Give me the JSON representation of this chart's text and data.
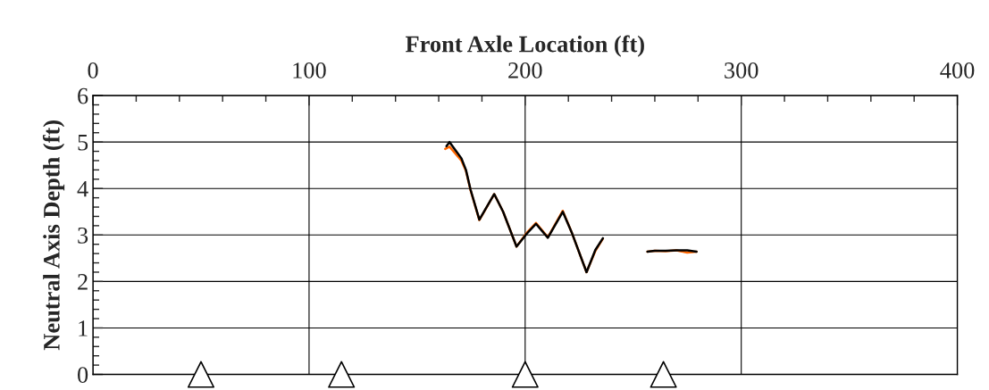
{
  "chart_data": {
    "type": "line",
    "xlabel": "Front Axle Location (ft)",
    "ylabel": "Neutral Axis Depth (ft)",
    "xlim": [
      0,
      400
    ],
    "xticks": [
      0,
      100,
      200,
      300,
      400
    ],
    "ylim": [
      0,
      6
    ],
    "yticks": [
      0,
      1,
      2,
      3,
      4,
      5,
      6
    ],
    "grid": true,
    "legend": false,
    "series": [
      {
        "color": "#ff6600",
        "x": [
          163,
          165,
          170.5,
          172.6,
          174.7,
          178.8,
          185.7,
          189.8,
          196,
          200.8,
          205,
          210.5,
          217.4,
          221.5,
          228.4,
          232.5,
          236,
          246,
          256.6,
          260,
          265,
          270,
          275,
          279.3
        ],
        "values": [
          4.85,
          4.9,
          4.6,
          4.38,
          3.97,
          3.32,
          3.88,
          3.5,
          2.75,
          3.05,
          3.26,
          2.95,
          3.52,
          3.06,
          2.2,
          2.66,
          2.92,
          null,
          2.64,
          2.66,
          2.65,
          2.67,
          2.62,
          2.64
        ]
      },
      {
        "color": "#000000",
        "x": [
          163.6,
          165,
          170.5,
          172.6,
          174.7,
          178.8,
          185.7,
          189.8,
          196,
          200.8,
          205,
          210.5,
          217.4,
          221.5,
          228.4,
          232.5,
          236,
          246,
          256.6,
          260,
          265,
          270,
          275,
          279.3
        ],
        "values": [
          4.91,
          5.0,
          4.65,
          4.4,
          3.98,
          3.33,
          3.88,
          3.5,
          2.75,
          3.03,
          3.24,
          2.94,
          3.5,
          3.06,
          2.2,
          2.68,
          2.93,
          null,
          2.64,
          2.66,
          2.66,
          2.67,
          2.67,
          2.64
        ]
      },
      {
        "type": "scatter",
        "color": "#000000",
        "marker": "triangle",
        "x": [
          50,
          115,
          200,
          264
        ],
        "values": [
          0,
          0,
          0,
          0
        ]
      }
    ]
  }
}
